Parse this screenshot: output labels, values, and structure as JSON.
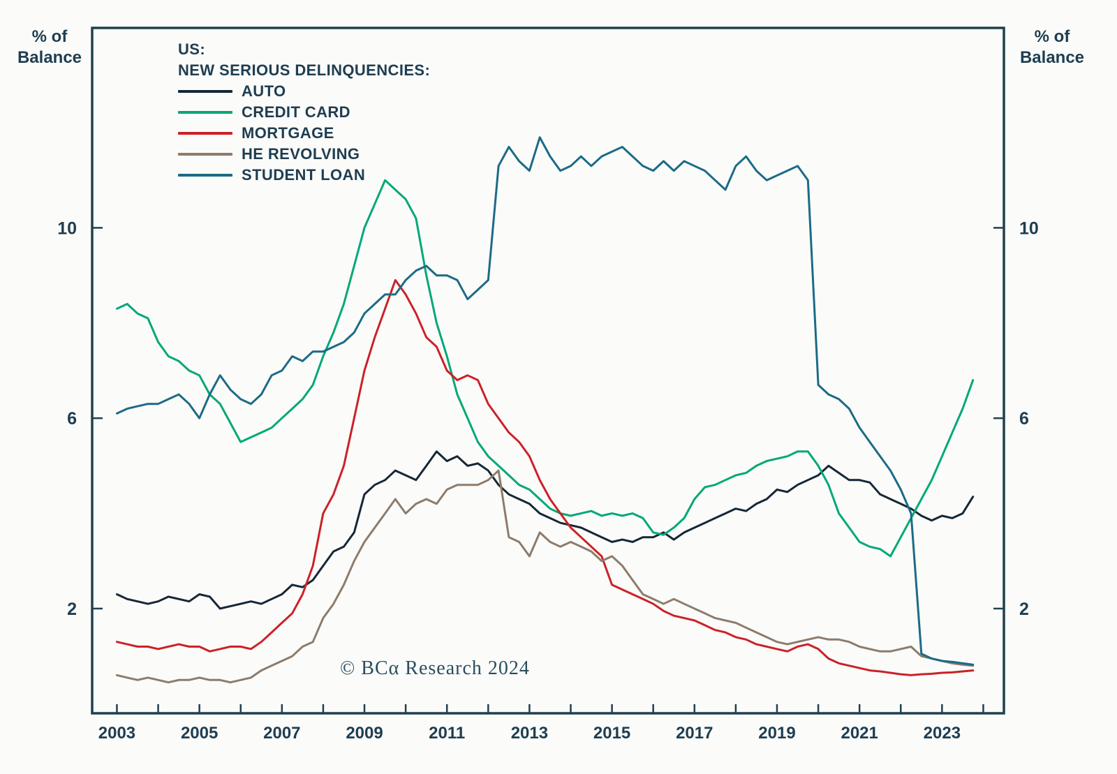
{
  "axis_left_label": "% of Balance",
  "axis_right_label": "% of Balance",
  "legend": {
    "title_line1": "US:",
    "title_line2": "NEW SERIOUS DELINQUENCIES:"
  },
  "footer": {
    "copyright": "© BCα Research 2024"
  },
  "chart_data": {
    "type": "line",
    "title": "US: New Serious Delinquencies (% of Balance)",
    "ylabel": "% of Balance",
    "x_start": 2003.0,
    "x_step": 0.25,
    "xlim": [
      2002.4,
      2024.5
    ],
    "ylim": [
      -0.2,
      14.2
    ],
    "yticks": [
      2,
      6,
      10
    ],
    "xtick_years": [
      2003,
      2004,
      2005,
      2006,
      2007,
      2008,
      2009,
      2010,
      2011,
      2012,
      2013,
      2014,
      2015,
      2016,
      2017,
      2018,
      2019,
      2020,
      2021,
      2022,
      2023,
      2024
    ],
    "xtick_label_years": [
      2003,
      2005,
      2007,
      2009,
      2011,
      2013,
      2015,
      2017,
      2019,
      2021,
      2023
    ],
    "grid": false,
    "legend_position": "top-left-inside",
    "frame_color": "#20404f",
    "text_color": "#1e3d51",
    "series": [
      {
        "name": "AUTO",
        "color": "#152736",
        "values": [
          2.3,
          2.2,
          2.15,
          2.1,
          2.15,
          2.25,
          2.2,
          2.15,
          2.3,
          2.25,
          2.0,
          2.05,
          2.1,
          2.15,
          2.1,
          2.2,
          2.3,
          2.5,
          2.45,
          2.6,
          2.9,
          3.2,
          3.3,
          3.6,
          4.4,
          4.6,
          4.7,
          4.9,
          4.8,
          4.7,
          5.0,
          5.3,
          5.1,
          5.2,
          5.0,
          5.05,
          4.9,
          4.6,
          4.4,
          4.3,
          4.2,
          4.0,
          3.9,
          3.8,
          3.75,
          3.7,
          3.6,
          3.5,
          3.4,
          3.45,
          3.4,
          3.5,
          3.5,
          3.6,
          3.45,
          3.6,
          3.7,
          3.8,
          3.9,
          4.0,
          4.1,
          4.05,
          4.2,
          4.3,
          4.5,
          4.45,
          4.6,
          4.7,
          4.8,
          5.0,
          4.85,
          4.7,
          4.7,
          4.65,
          4.4,
          4.3,
          4.2,
          4.1,
          3.95,
          3.85,
          3.95,
          3.9,
          4.0,
          4.35
        ]
      },
      {
        "name": "CREDIT CARD",
        "color": "#00a878",
        "values": [
          8.3,
          8.4,
          8.2,
          8.1,
          7.6,
          7.3,
          7.2,
          7.0,
          6.9,
          6.5,
          6.3,
          5.9,
          5.5,
          5.6,
          5.7,
          5.8,
          6.0,
          6.2,
          6.4,
          6.7,
          7.3,
          7.8,
          8.4,
          9.2,
          10.0,
          10.5,
          11.0,
          10.8,
          10.6,
          10.2,
          9.0,
          8.0,
          7.3,
          6.5,
          6.0,
          5.5,
          5.2,
          5.0,
          4.8,
          4.6,
          4.5,
          4.3,
          4.1,
          4.0,
          3.95,
          4.0,
          4.05,
          3.95,
          4.0,
          3.95,
          4.0,
          3.9,
          3.6,
          3.55,
          3.7,
          3.9,
          4.3,
          4.55,
          4.6,
          4.7,
          4.8,
          4.85,
          5.0,
          5.1,
          5.15,
          5.2,
          5.3,
          5.3,
          5.0,
          4.6,
          4.0,
          3.7,
          3.4,
          3.3,
          3.25,
          3.1,
          3.5,
          3.9,
          4.3,
          4.7,
          5.2,
          5.7,
          6.2,
          6.8
        ]
      },
      {
        "name": "MORTGAGE",
        "color": "#cb2128",
        "values": [
          1.3,
          1.25,
          1.2,
          1.2,
          1.15,
          1.2,
          1.25,
          1.2,
          1.2,
          1.1,
          1.15,
          1.2,
          1.2,
          1.15,
          1.3,
          1.5,
          1.7,
          1.9,
          2.3,
          2.9,
          4.0,
          4.4,
          5.0,
          6.0,
          7.0,
          7.7,
          8.3,
          8.9,
          8.6,
          8.2,
          7.7,
          7.5,
          7.0,
          6.8,
          6.9,
          6.8,
          6.3,
          6.0,
          5.7,
          5.5,
          5.2,
          4.7,
          4.3,
          4.0,
          3.7,
          3.5,
          3.3,
          3.1,
          2.5,
          2.4,
          2.3,
          2.2,
          2.1,
          1.95,
          1.85,
          1.8,
          1.75,
          1.65,
          1.55,
          1.5,
          1.4,
          1.35,
          1.25,
          1.2,
          1.15,
          1.1,
          1.2,
          1.25,
          1.15,
          0.95,
          0.85,
          0.8,
          0.75,
          0.7,
          0.68,
          0.65,
          0.62,
          0.6,
          0.62,
          0.63,
          0.65,
          0.66,
          0.68,
          0.7
        ]
      },
      {
        "name": "HE REVOLVING",
        "color": "#8c7c6d",
        "values": [
          0.6,
          0.55,
          0.5,
          0.55,
          0.5,
          0.45,
          0.5,
          0.5,
          0.55,
          0.5,
          0.5,
          0.45,
          0.5,
          0.55,
          0.7,
          0.8,
          0.9,
          1.0,
          1.2,
          1.3,
          1.8,
          2.1,
          2.5,
          3.0,
          3.4,
          3.7,
          4.0,
          4.3,
          4.0,
          4.2,
          4.3,
          4.2,
          4.5,
          4.6,
          4.6,
          4.6,
          4.7,
          4.9,
          3.5,
          3.4,
          3.1,
          3.6,
          3.4,
          3.3,
          3.4,
          3.3,
          3.2,
          3.0,
          3.1,
          2.9,
          2.6,
          2.3,
          2.2,
          2.1,
          2.2,
          2.1,
          2.0,
          1.9,
          1.8,
          1.75,
          1.7,
          1.6,
          1.5,
          1.4,
          1.3,
          1.25,
          1.3,
          1.35,
          1.4,
          1.35,
          1.35,
          1.3,
          1.2,
          1.15,
          1.1,
          1.1,
          1.15,
          1.2,
          1.0,
          0.95,
          0.9,
          0.85,
          0.82,
          0.8
        ]
      },
      {
        "name": "STUDENT LOAN",
        "color": "#1b6b87",
        "values": [
          6.1,
          6.2,
          6.25,
          6.3,
          6.3,
          6.4,
          6.5,
          6.3,
          6.0,
          6.5,
          6.9,
          6.6,
          6.4,
          6.3,
          6.5,
          6.9,
          7.0,
          7.3,
          7.2,
          7.4,
          7.4,
          7.5,
          7.6,
          7.8,
          8.2,
          8.4,
          8.6,
          8.6,
          8.9,
          9.1,
          9.2,
          9.0,
          9.0,
          8.9,
          8.5,
          8.7,
          8.9,
          11.3,
          11.7,
          11.4,
          11.2,
          11.9,
          11.5,
          11.2,
          11.3,
          11.5,
          11.3,
          11.5,
          11.6,
          11.7,
          11.5,
          11.3,
          11.2,
          11.4,
          11.2,
          11.4,
          11.3,
          11.2,
          11.0,
          10.8,
          11.3,
          11.5,
          11.2,
          11.0,
          11.1,
          11.2,
          11.3,
          11.0,
          6.7,
          6.5,
          6.4,
          6.2,
          5.8,
          5.5,
          5.2,
          4.9,
          4.5,
          4.0,
          1.05,
          0.95,
          0.9,
          0.88,
          0.85,
          0.82
        ]
      }
    ]
  }
}
